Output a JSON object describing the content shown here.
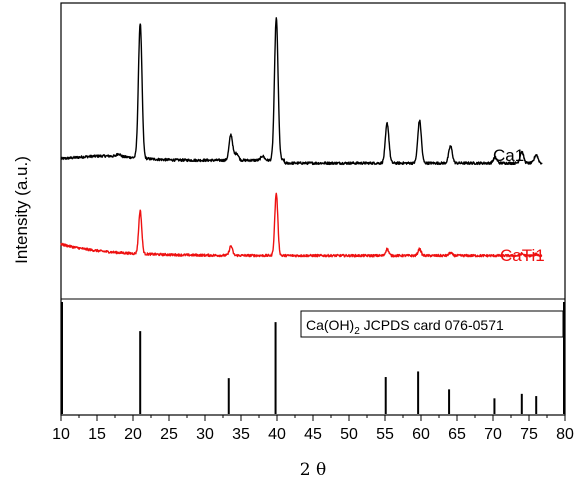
{
  "chart_data": {
    "type": "line",
    "xlabel_main": "2",
    "xlabel_symbol": "θ",
    "ylabel": "Intensity (a.u.)",
    "xlim": [
      10,
      80
    ],
    "x_ticks": [
      10,
      15,
      20,
      25,
      30,
      35,
      40,
      45,
      50,
      55,
      60,
      65,
      70,
      75,
      80
    ],
    "x_tick_labels": [
      "10",
      "15",
      "20",
      "25",
      "30",
      "35",
      "40",
      "45",
      "50",
      "55",
      "60",
      "65",
      "70",
      "75",
      "80"
    ],
    "series": [
      {
        "name": "Ca1",
        "color": "#000000",
        "baseline_intensity": 0.35,
        "peaks": [
          {
            "x": 18.0,
            "height": 0.02
          },
          {
            "x": 21.0,
            "height": 0.95
          },
          {
            "x": 33.6,
            "height": 0.18
          },
          {
            "x": 34.4,
            "height": 0.05
          },
          {
            "x": 38.0,
            "height": 0.03
          },
          {
            "x": 39.9,
            "height": 1.0
          },
          {
            "x": 55.3,
            "height": 0.28
          },
          {
            "x": 59.8,
            "height": 0.3
          },
          {
            "x": 64.1,
            "height": 0.12
          },
          {
            "x": 70.3,
            "height": 0.04
          },
          {
            "x": 74.0,
            "height": 0.08
          },
          {
            "x": 76.0,
            "height": 0.06
          }
        ]
      },
      {
        "name": "CaTi1",
        "color": "#ee1111",
        "baseline_intensity": 0.15,
        "peaks": [
          {
            "x": 21.0,
            "height": 0.45
          },
          {
            "x": 33.6,
            "height": 0.1
          },
          {
            "x": 39.9,
            "height": 0.65
          },
          {
            "x": 55.3,
            "height": 0.07
          },
          {
            "x": 59.8,
            "height": 0.07
          },
          {
            "x": 64.1,
            "height": 0.03
          },
          {
            "x": 74.0,
            "height": 0.02
          },
          {
            "x": 76.0,
            "height": 0.015
          }
        ]
      }
    ],
    "reference": {
      "label_pre": "Ca(OH)",
      "label_sub": "2",
      "label_post": " JCPDS card 076-0571",
      "lines": [
        {
          "x": 21.0,
          "intensity": 0.74
        },
        {
          "x": 33.3,
          "intensity": 0.32
        },
        {
          "x": 39.8,
          "intensity": 0.82
        },
        {
          "x": 55.1,
          "intensity": 0.33
        },
        {
          "x": 59.6,
          "intensity": 0.38
        },
        {
          "x": 63.9,
          "intensity": 0.22
        },
        {
          "x": 70.2,
          "intensity": 0.14
        },
        {
          "x": 74.0,
          "intensity": 0.18
        },
        {
          "x": 76.0,
          "intensity": 0.16
        }
      ]
    }
  }
}
